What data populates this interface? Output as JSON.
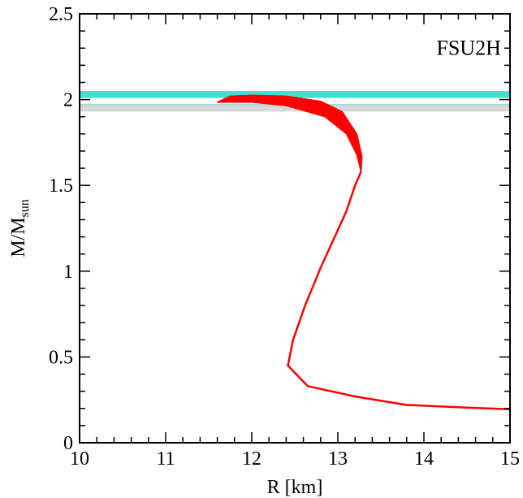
{
  "chart_data": {
    "type": "line",
    "title": "",
    "xlabel": "R [km]",
    "ylabel": {
      "main": "M/M",
      "subscript": "sun"
    },
    "xlim": [
      10,
      15
    ],
    "ylim": [
      0,
      2.5
    ],
    "x_ticks": [
      10,
      11,
      12,
      13,
      14,
      15
    ],
    "x_tick_labels": [
      "10",
      "11",
      "12",
      "13",
      "14",
      "15"
    ],
    "y_ticks": [
      0,
      0.5,
      1,
      1.5,
      2,
      2.5
    ],
    "y_tick_labels": [
      "0",
      "0.5",
      "1",
      "1.5",
      "2",
      "2.5"
    ],
    "x_minor_step": 0.2,
    "y_minor_step": 0.1,
    "grid": false,
    "annotation": "FSU2H",
    "bands": [
      {
        "y_range": [
          1.93,
          1.97
        ],
        "color": "#d9d9d9"
      },
      {
        "y_range": [
          2.01,
          2.05
        ],
        "color": "#40e0d0"
      }
    ],
    "reference_line": {
      "y": 1.97,
      "color": "#a8dcd8"
    },
    "series": [
      {
        "color": "#ff0000",
        "fill_region": {
          "upper": [
            {
              "x": 11.6,
              "y": 1.985
            },
            {
              "x": 11.75,
              "y": 2.02
            },
            {
              "x": 12.0,
              "y": 2.025
            },
            {
              "x": 12.4,
              "y": 2.02
            },
            {
              "x": 12.8,
              "y": 1.99
            },
            {
              "x": 13.05,
              "y": 1.93
            },
            {
              "x": 13.22,
              "y": 1.8
            },
            {
              "x": 13.28,
              "y": 1.67
            },
            {
              "x": 13.27,
              "y": 1.58
            }
          ],
          "lower": [
            {
              "x": 13.27,
              "y": 1.58
            },
            {
              "x": 13.22,
              "y": 1.68
            },
            {
              "x": 13.1,
              "y": 1.8
            },
            {
              "x": 12.85,
              "y": 1.9
            },
            {
              "x": 12.4,
              "y": 1.965
            },
            {
              "x": 12.0,
              "y": 1.985
            },
            {
              "x": 11.6,
              "y": 1.985
            }
          ]
        },
        "points": [
          {
            "x": 13.27,
            "y": 1.58
          },
          {
            "x": 13.2,
            "y": 1.5
          },
          {
            "x": 13.1,
            "y": 1.35
          },
          {
            "x": 13.0,
            "y": 1.24
          },
          {
            "x": 12.8,
            "y": 1.02
          },
          {
            "x": 12.62,
            "y": 0.8
          },
          {
            "x": 12.48,
            "y": 0.6
          },
          {
            "x": 12.42,
            "y": 0.45
          },
          {
            "x": 12.65,
            "y": 0.33
          },
          {
            "x": 13.2,
            "y": 0.27
          },
          {
            "x": 13.8,
            "y": 0.22
          },
          {
            "x": 14.5,
            "y": 0.205
          },
          {
            "x": 15.0,
            "y": 0.195
          }
        ]
      }
    ]
  }
}
